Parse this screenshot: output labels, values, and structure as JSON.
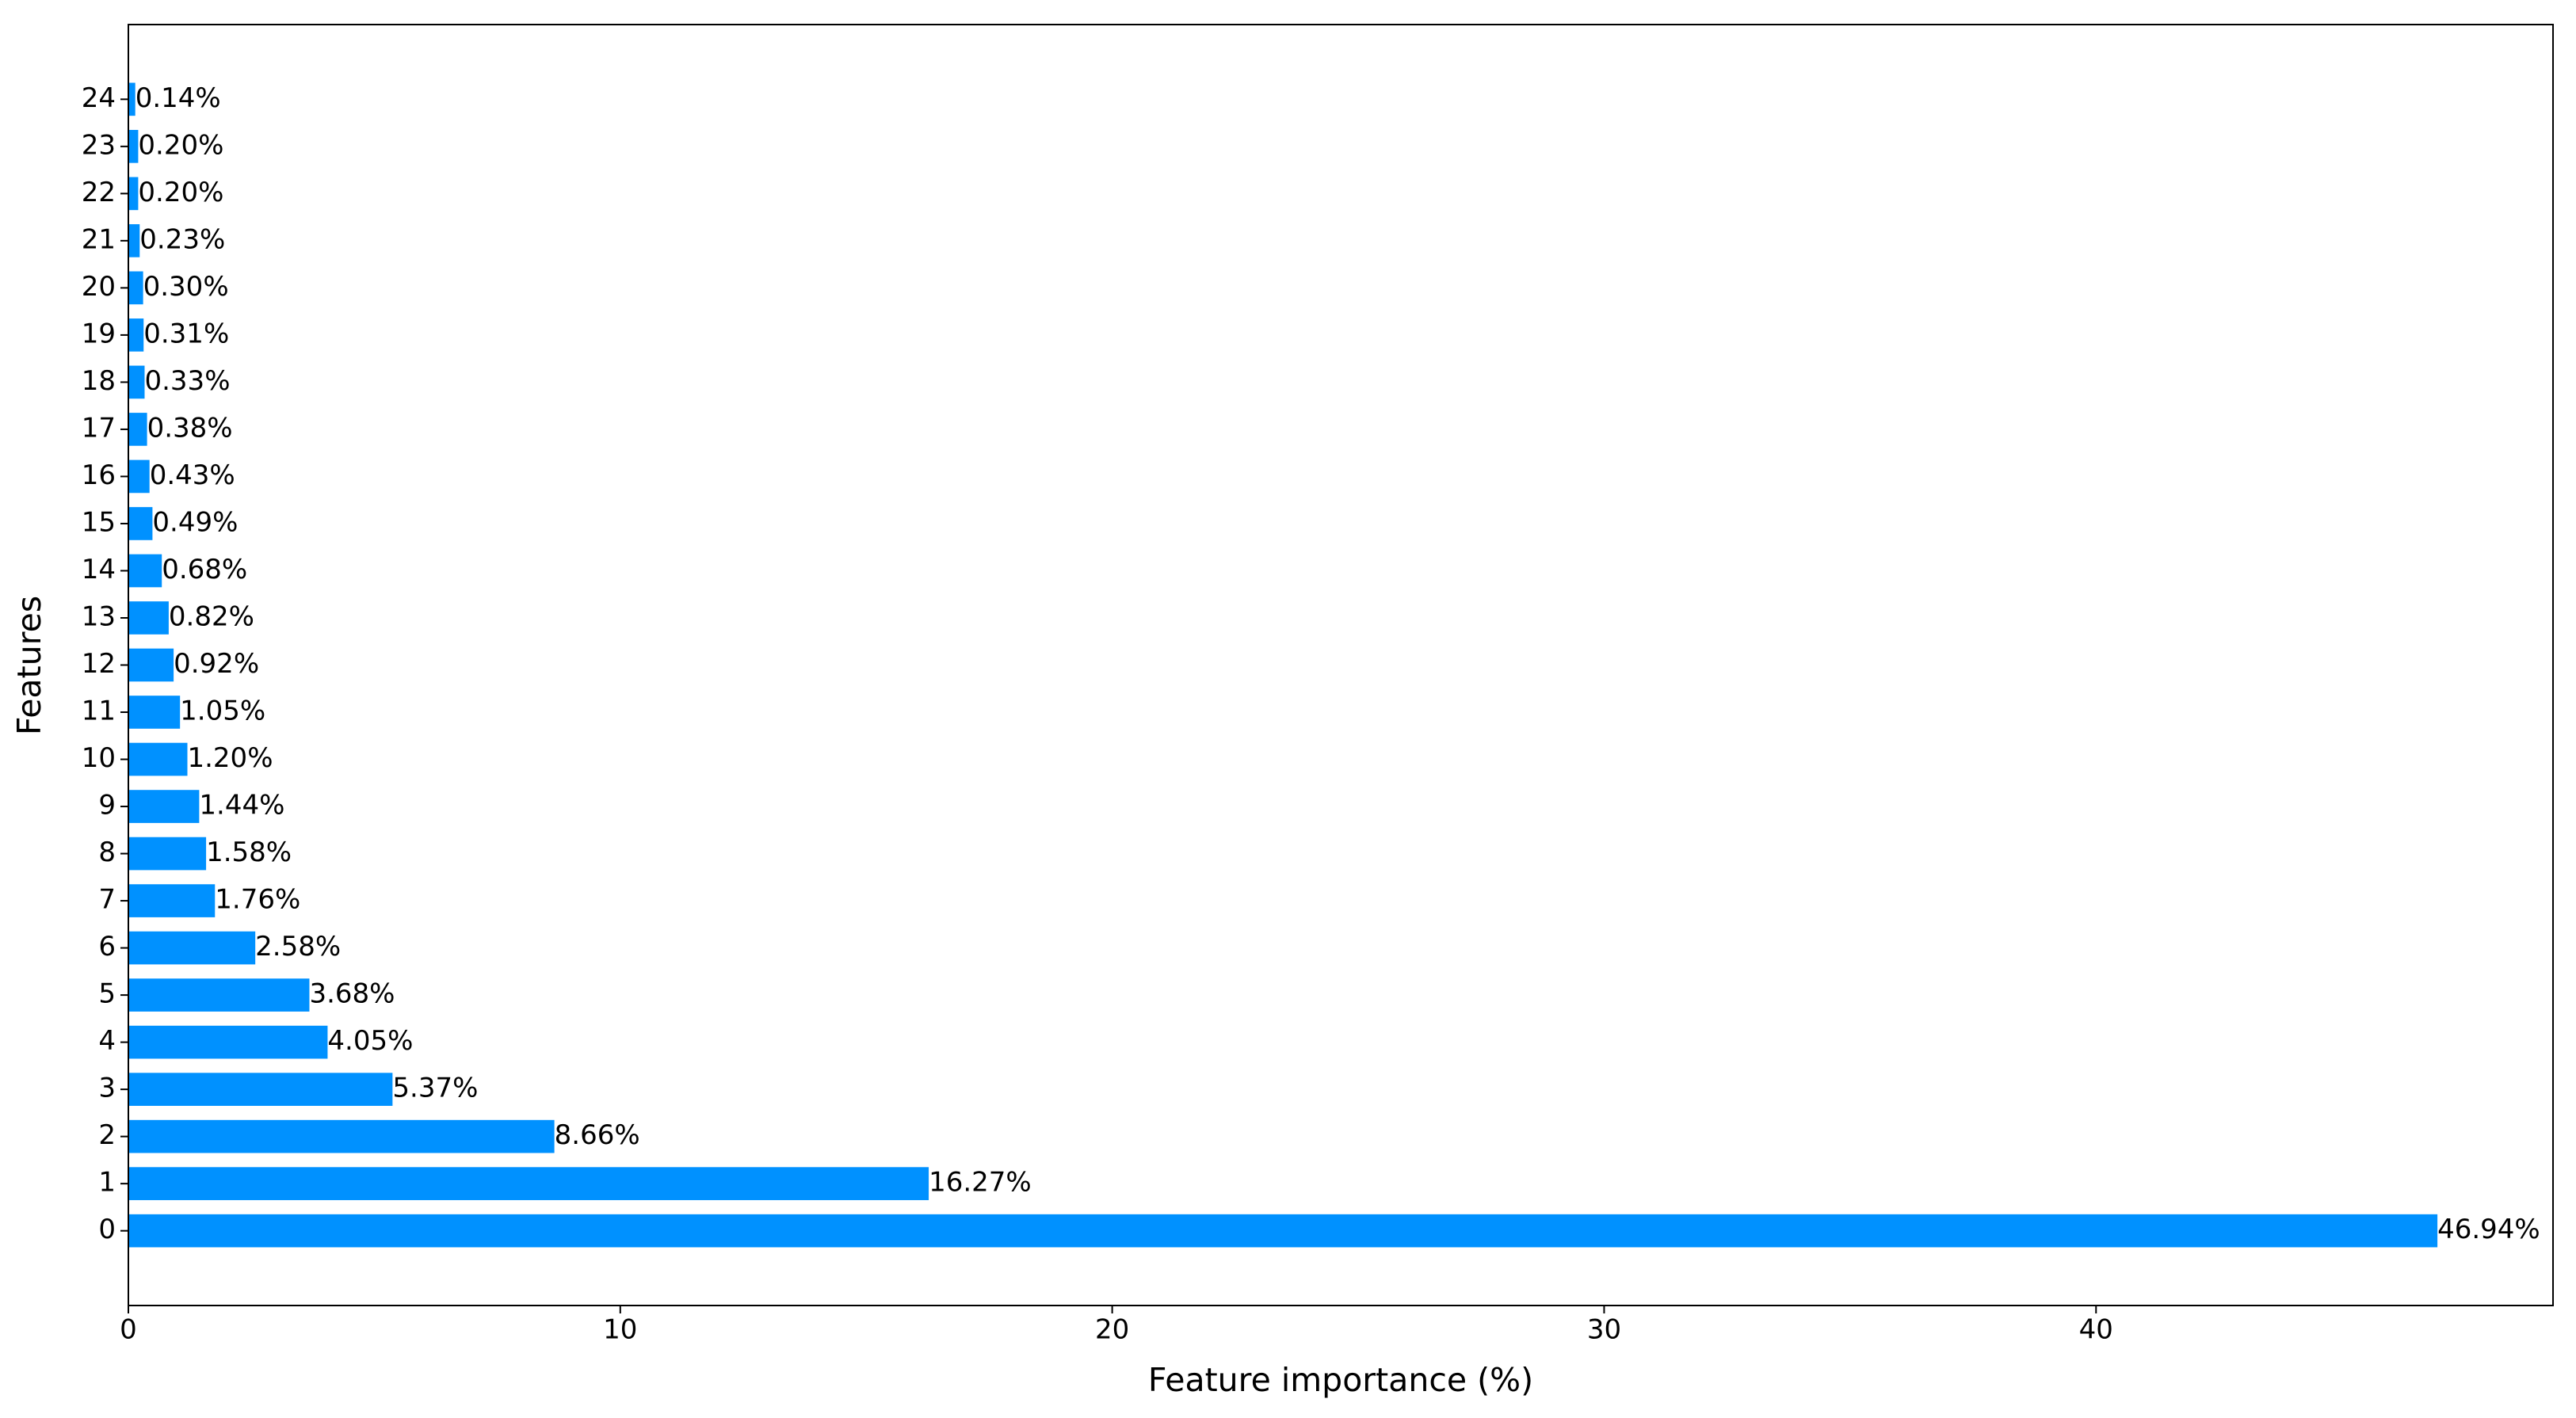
{
  "chart_data": {
    "type": "barh",
    "xlabel": "Feature importance (%)",
    "ylabel": "Features",
    "categories": [
      "0",
      "1",
      "2",
      "3",
      "4",
      "5",
      "6",
      "7",
      "8",
      "9",
      "10",
      "11",
      "12",
      "13",
      "14",
      "15",
      "16",
      "17",
      "18",
      "19",
      "20",
      "21",
      "22",
      "23",
      "24"
    ],
    "values": [
      46.94,
      16.27,
      8.66,
      5.37,
      4.05,
      3.68,
      2.58,
      1.76,
      1.58,
      1.44,
      1.2,
      1.05,
      0.92,
      0.82,
      0.68,
      0.49,
      0.43,
      0.38,
      0.33,
      0.31,
      0.3,
      0.23,
      0.2,
      0.2,
      0.14
    ],
    "value_labels": [
      "46.94%",
      "16.27%",
      "8.66%",
      "5.37%",
      "4.05%",
      "3.68%",
      "2.58%",
      "1.76%",
      "1.58%",
      "1.44%",
      "1.20%",
      "1.05%",
      "0.92%",
      "0.82%",
      "0.68%",
      "0.49%",
      "0.43%",
      "0.38%",
      "0.33%",
      "0.31%",
      "0.30%",
      "0.23%",
      "0.20%",
      "0.20%",
      "0.14%"
    ],
    "color": "#0091ff",
    "xlim": [
      0,
      49.29
    ],
    "xticks": [
      0,
      10,
      20,
      30,
      40
    ]
  }
}
